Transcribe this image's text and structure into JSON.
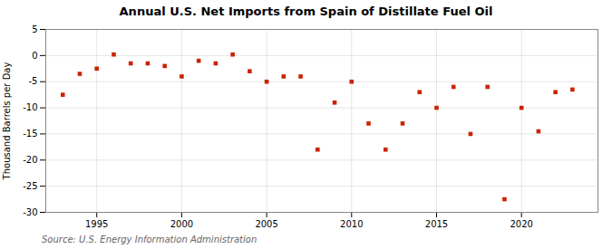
{
  "chart_data": {
    "type": "scatter",
    "title": "Annual U.S. Net Imports from Spain of Distillate Fuel Oil",
    "ylabel": "Thousand Barrels per Day",
    "annotation": "Source: U.S. Energy Information Administration",
    "x": [
      1993,
      1994,
      1995,
      1996,
      1997,
      1998,
      1999,
      2000,
      2001,
      2002,
      2003,
      2004,
      2005,
      2006,
      2007,
      2008,
      2009,
      2010,
      2011,
      2012,
      2013,
      2014,
      2015,
      2016,
      2017,
      2018,
      2019,
      2020,
      2021,
      2022,
      2023
    ],
    "values": [
      -7.5,
      -3.5,
      -2.5,
      0.2,
      -1.5,
      -1.5,
      -2.0,
      -4.0,
      -1.0,
      -1.5,
      0.2,
      -3.0,
      -5.0,
      -4.0,
      -4.0,
      -18.0,
      -9.0,
      -5.0,
      -13.0,
      -18.0,
      -13.0,
      -7.0,
      -10.0,
      -6.0,
      -15.0,
      -6.0,
      -27.5,
      -10.0,
      -14.5,
      -7.0,
      -6.5
    ],
    "color": "#cc2200",
    "marker": "square",
    "xlim": [
      1992.0,
      2024.5
    ],
    "xticks": [
      1995,
      2000,
      2005,
      2010,
      2015,
      2020
    ],
    "ylim": [
      -30,
      5
    ],
    "yticks": [
      5,
      0,
      -5,
      -10,
      -15,
      -20,
      -25,
      -30
    ],
    "grid": true
  }
}
